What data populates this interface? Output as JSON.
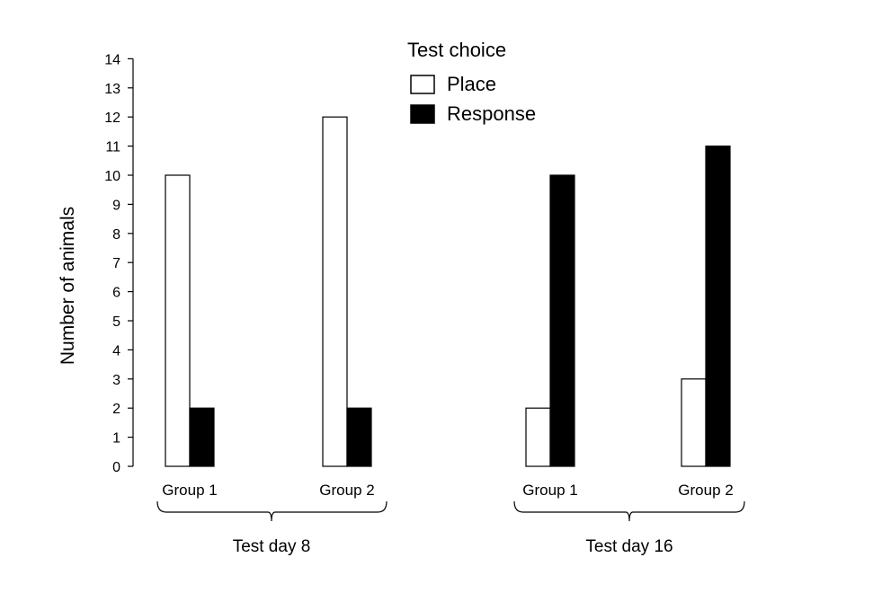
{
  "chart_data": {
    "type": "bar",
    "title": "",
    "ylabel": "Number of animals",
    "xlabel": "",
    "ylim": [
      0,
      14
    ],
    "yticks": [
      0,
      1,
      2,
      3,
      4,
      5,
      6,
      7,
      8,
      9,
      10,
      11,
      12,
      13,
      14
    ],
    "grid": false,
    "legend": {
      "title": "Test choice",
      "placement": "top-center"
    },
    "groups": [
      {
        "label": "Test day 8",
        "categories": [
          "Group 1",
          "Group 2"
        ]
      },
      {
        "label": "Test day 16",
        "categories": [
          "Group 1",
          "Group 2"
        ]
      }
    ],
    "series": [
      {
        "name": "Place",
        "color": "#ffffff",
        "values": [
          10,
          12,
          2,
          3
        ]
      },
      {
        "name": "Response",
        "color": "#000000",
        "values": [
          2,
          2,
          10,
          11
        ]
      }
    ]
  }
}
